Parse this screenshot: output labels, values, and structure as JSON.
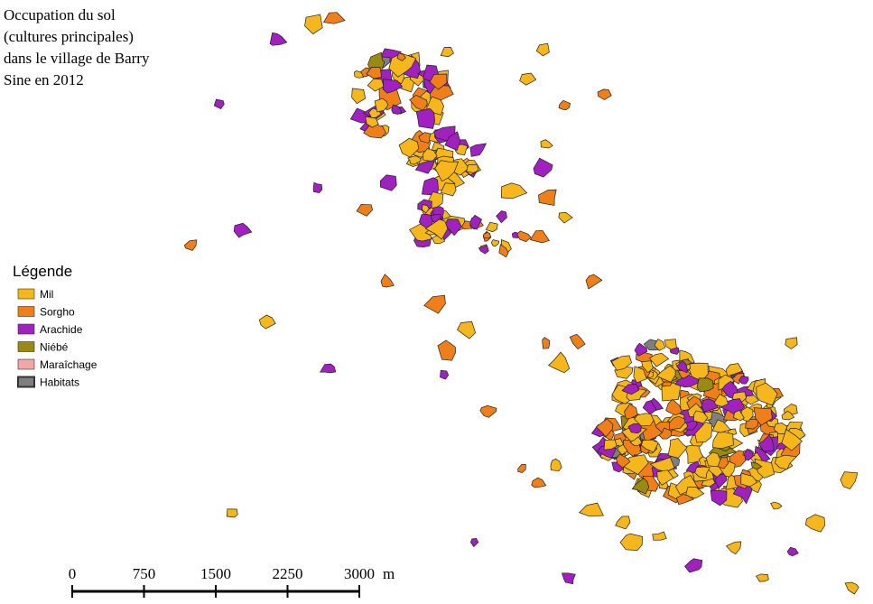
{
  "map": {
    "title_lines": [
      "Occupation du sol",
      "(cultures principales)",
      "dans le village de Barry",
      "Sine en 2012"
    ],
    "legend": {
      "title": "Légende",
      "items": [
        {
          "name": "Mil",
          "color": "#f5b71b"
        },
        {
          "name": "Sorgho",
          "color": "#f07f1a"
        },
        {
          "name": "Arachide",
          "color": "#a020c0"
        },
        {
          "name": "Niébé",
          "color": "#9a8a10"
        },
        {
          "name": "Maraîchage",
          "color": "#f4a6a6"
        },
        {
          "name": "Habitats",
          "color": "#7f7f7f"
        }
      ]
    },
    "scale": {
      "ticks": [
        0,
        750,
        1500,
        2250,
        3000
      ],
      "unit": "m"
    }
  }
}
